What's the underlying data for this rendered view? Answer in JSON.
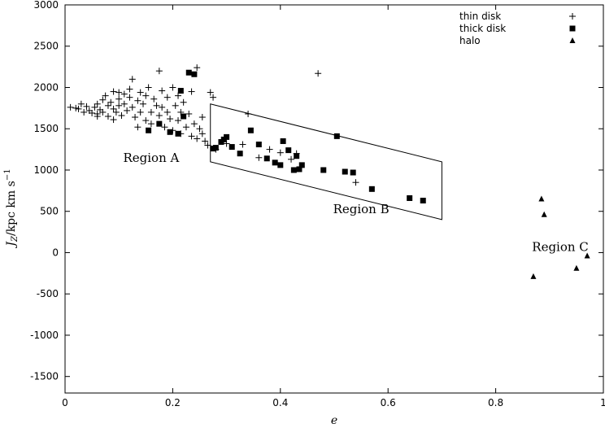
{
  "chart_data": {
    "type": "scatter",
    "xlabel": "e",
    "ylabel": "J",
    "ylabel_sub": "Z",
    "ylabel_unit": "/kpc km s",
    "ylabel_sup": "−1",
    "xlim": [
      0,
      1
    ],
    "ylim": [
      -1700,
      3000
    ],
    "xticks": [
      {
        "value": 0,
        "label": "0"
      },
      {
        "value": 0.2,
        "label": "0.2"
      },
      {
        "value": 0.4,
        "label": "0.4"
      },
      {
        "value": 0.6,
        "label": "0.6"
      },
      {
        "value": 0.8,
        "label": "0.8"
      },
      {
        "value": 1,
        "label": "1"
      }
    ],
    "yticks": [
      {
        "value": -1500,
        "label": "-1500"
      },
      {
        "value": -1000,
        "label": "-1000"
      },
      {
        "value": -500,
        "label": "-500"
      },
      {
        "value": 0,
        "label": "0"
      },
      {
        "value": 500,
        "label": "500"
      },
      {
        "value": 1000,
        "label": "1000"
      },
      {
        "value": 1500,
        "label": "1500"
      },
      {
        "value": 2000,
        "label": "2000"
      },
      {
        "value": 2500,
        "label": "2500"
      },
      {
        "value": 3000,
        "label": "3000"
      }
    ],
    "grid": false,
    "legend_position": "top-right",
    "series": [
      {
        "name": "thin disk",
        "marker": "plus",
        "points": [
          [
            0.01,
            1760
          ],
          [
            0.02,
            1750
          ],
          [
            0.025,
            1740
          ],
          [
            0.03,
            1800
          ],
          [
            0.035,
            1700
          ],
          [
            0.04,
            1770
          ],
          [
            0.045,
            1720
          ],
          [
            0.05,
            1690
          ],
          [
            0.055,
            1760
          ],
          [
            0.06,
            1800
          ],
          [
            0.06,
            1680
          ],
          [
            0.065,
            1730
          ],
          [
            0.07,
            1850
          ],
          [
            0.07,
            1700
          ],
          [
            0.075,
            1900
          ],
          [
            0.08,
            1780
          ],
          [
            0.08,
            1650
          ],
          [
            0.085,
            1820
          ],
          [
            0.09,
            1740
          ],
          [
            0.09,
            1950
          ],
          [
            0.095,
            1700
          ],
          [
            0.1,
            1860
          ],
          [
            0.1,
            1780
          ],
          [
            0.105,
            1660
          ],
          [
            0.11,
            1920
          ],
          [
            0.11,
            1800
          ],
          [
            0.115,
            1720
          ],
          [
            0.12,
            1980
          ],
          [
            0.12,
            1880
          ],
          [
            0.125,
            2100
          ],
          [
            0.125,
            1760
          ],
          [
            0.13,
            1640
          ],
          [
            0.135,
            1840
          ],
          [
            0.14,
            1940
          ],
          [
            0.14,
            1700
          ],
          [
            0.145,
            1800
          ],
          [
            0.15,
            1600
          ],
          [
            0.15,
            1900
          ],
          [
            0.155,
            2000
          ],
          [
            0.16,
            1700
          ],
          [
            0.16,
            1560
          ],
          [
            0.165,
            1860
          ],
          [
            0.17,
            1780
          ],
          [
            0.175,
            1660
          ],
          [
            0.175,
            2200
          ],
          [
            0.18,
            1960
          ],
          [
            0.185,
            1520
          ],
          [
            0.19,
            1880
          ],
          [
            0.19,
            1700
          ],
          [
            0.195,
            1620
          ],
          [
            0.2,
            2000
          ],
          [
            0.2,
            1480
          ],
          [
            0.205,
            1780
          ],
          [
            0.21,
            1900
          ],
          [
            0.21,
            1600
          ],
          [
            0.215,
            1440
          ],
          [
            0.215,
            1700
          ],
          [
            0.22,
            1820
          ],
          [
            0.225,
            1520
          ],
          [
            0.23,
            1680
          ],
          [
            0.235,
            1950
          ],
          [
            0.235,
            1410
          ],
          [
            0.24,
            1560
          ],
          [
            0.245,
            2240
          ],
          [
            0.245,
            1380
          ],
          [
            0.25,
            1500
          ],
          [
            0.255,
            1440
          ],
          [
            0.255,
            1640
          ],
          [
            0.26,
            1350
          ],
          [
            0.265,
            1300
          ],
          [
            0.27,
            1940
          ],
          [
            0.275,
            1880
          ],
          [
            0.28,
            1250
          ],
          [
            0.33,
            1310
          ],
          [
            0.3,
            1320
          ],
          [
            0.34,
            1680
          ],
          [
            0.36,
            1150
          ],
          [
            0.38,
            1250
          ],
          [
            0.4,
            1210
          ],
          [
            0.42,
            1130
          ],
          [
            0.43,
            1200
          ],
          [
            0.54,
            850
          ],
          [
            0.47,
            2170
          ],
          [
            0.06,
            1650
          ],
          [
            0.09,
            1610
          ],
          [
            0.135,
            1520
          ],
          [
            0.1,
            1940
          ],
          [
            0.18,
            1760
          ]
        ]
      },
      {
        "name": "thick disk",
        "marker": "square",
        "points": [
          [
            0.155,
            1480
          ],
          [
            0.175,
            1560
          ],
          [
            0.195,
            1460
          ],
          [
            0.21,
            1440
          ],
          [
            0.215,
            1960
          ],
          [
            0.22,
            1650
          ],
          [
            0.23,
            2180
          ],
          [
            0.24,
            2160
          ],
          [
            0.275,
            1260
          ],
          [
            0.28,
            1270
          ],
          [
            0.29,
            1340
          ],
          [
            0.295,
            1370
          ],
          [
            0.3,
            1400
          ],
          [
            0.31,
            1280
          ],
          [
            0.325,
            1200
          ],
          [
            0.345,
            1480
          ],
          [
            0.36,
            1310
          ],
          [
            0.375,
            1140
          ],
          [
            0.39,
            1090
          ],
          [
            0.4,
            1060
          ],
          [
            0.405,
            1350
          ],
          [
            0.415,
            1240
          ],
          [
            0.425,
            1000
          ],
          [
            0.43,
            1170
          ],
          [
            0.435,
            1010
          ],
          [
            0.44,
            1060
          ],
          [
            0.48,
            1000
          ],
          [
            0.505,
            1410
          ],
          [
            0.52,
            980
          ],
          [
            0.535,
            970
          ],
          [
            0.57,
            770
          ],
          [
            0.64,
            660
          ],
          [
            0.665,
            630
          ]
        ]
      },
      {
        "name": "halo",
        "marker": "triangle",
        "points": [
          [
            0.885,
            650
          ],
          [
            0.89,
            460
          ],
          [
            0.87,
            -290
          ],
          [
            0.95,
            -190
          ],
          [
            0.97,
            -40
          ]
        ]
      }
    ],
    "annotations": [
      {
        "text": "Region A",
        "x": 0.16,
        "y": 1100
      },
      {
        "text": "Region B",
        "x": 0.55,
        "y": 480
      },
      {
        "text": "Region C",
        "x": 0.92,
        "y": 20
      }
    ],
    "region_b_polygon": [
      [
        0.27,
        1800
      ],
      [
        0.7,
        1100
      ],
      [
        0.7,
        400
      ],
      [
        0.27,
        1100
      ]
    ]
  }
}
